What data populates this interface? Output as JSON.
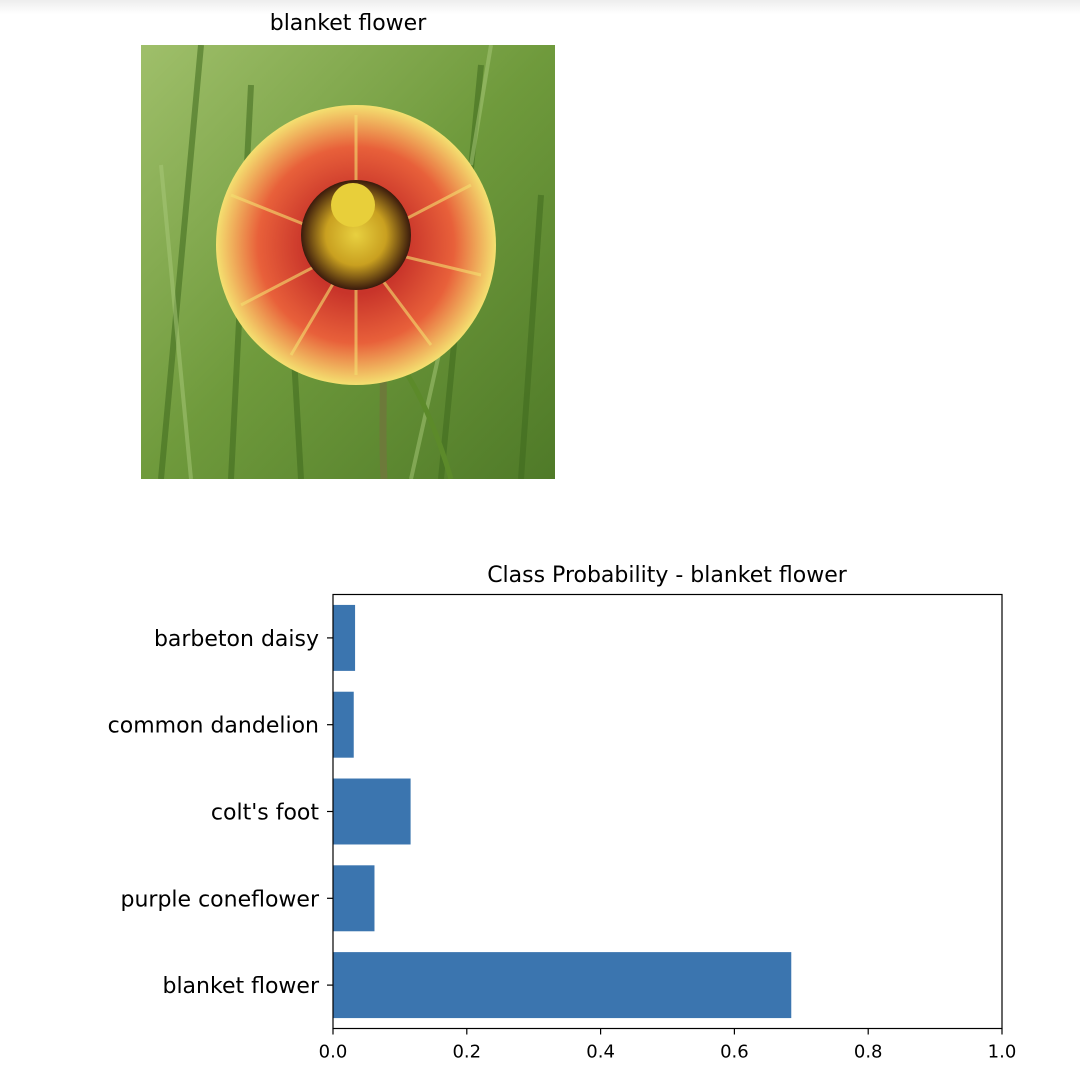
{
  "image_title": "blanket flower",
  "chart_data": {
    "type": "bar",
    "orientation": "horizontal",
    "title": "Class Probability - blanket flower",
    "categories": [
      "blanket flower",
      "purple coneflower",
      "colt's foot",
      "common dandelion",
      "barbeton daisy"
    ],
    "values": [
      0.685,
      0.062,
      0.116,
      0.031,
      0.033
    ],
    "xlim": [
      0.0,
      1.0
    ],
    "xticks": [
      "0.0",
      "0.2",
      "0.4",
      "0.6",
      "0.8",
      "1.0"
    ],
    "xlabel": "",
    "ylabel": "",
    "grid": false,
    "bar_color": "#3b75af"
  }
}
